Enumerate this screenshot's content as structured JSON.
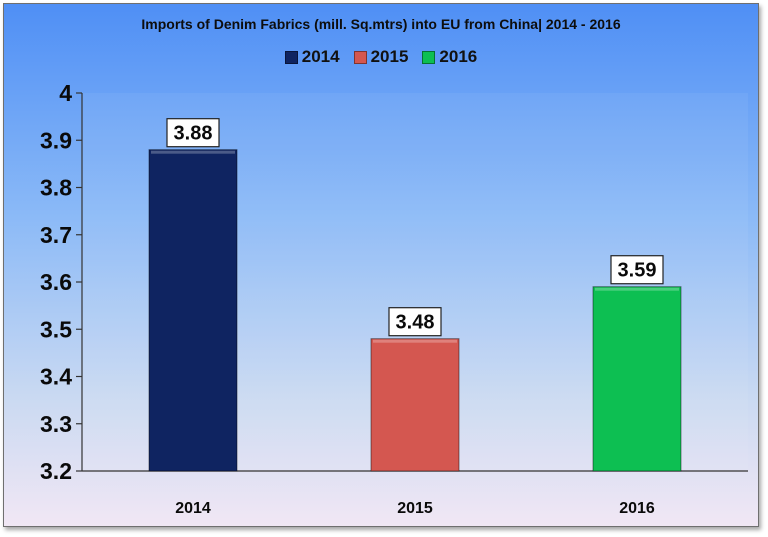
{
  "chart_data": {
    "type": "bar",
    "title": "Imports of Denim Fabrics (mill. Sq.mtrs) into EU from China| 2014 - 2016",
    "categories": [
      "2014",
      "2015",
      "2016"
    ],
    "values": [
      3.88,
      3.48,
      3.59
    ],
    "data_labels": [
      "3.88",
      "3.48",
      "3.59"
    ],
    "colors": [
      "#0f2461",
      "#d45750",
      "#0dbf52"
    ],
    "ylim": [
      3.2,
      4
    ],
    "yticks": [
      "3.2",
      "3.3",
      "3.4",
      "3.5",
      "3.6",
      "3.7",
      "3.8",
      "3.9",
      "4"
    ],
    "legend": [
      "2014",
      "2015",
      "2016"
    ],
    "legend_position": "top-center",
    "grid": false
  }
}
